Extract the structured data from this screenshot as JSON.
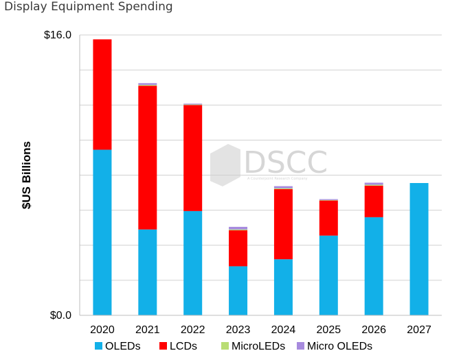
{
  "page": {
    "title": "Display Equipment Spending"
  },
  "watermark": {
    "text": "DSCC",
    "subtext": "A Counterpoint Research Company"
  },
  "chart_data": {
    "type": "bar",
    "stacked": true,
    "title": "",
    "xlabel": "",
    "ylabel": "$US Billions",
    "ylim": [
      0,
      16
    ],
    "y_tick_labels": [
      "$0.0",
      "$16.0"
    ],
    "gridlines": 8,
    "grid": true,
    "legend_position": "bottom",
    "categories": [
      "2020",
      "2021",
      "2022",
      "2023",
      "2024",
      "2025",
      "2026",
      "2027"
    ],
    "series": [
      {
        "name": "OLEDs",
        "color": "#12b0e8",
        "values": [
          9.45,
          4.9,
          5.95,
          2.8,
          3.2,
          4.55,
          5.6,
          7.55
        ]
      },
      {
        "name": "LCDs",
        "color": "#ff0000",
        "values": [
          6.3,
          8.2,
          6.05,
          2.05,
          4.0,
          2.0,
          1.8,
          0.0
        ]
      },
      {
        "name": "MicroLEDs",
        "color": "#b9dd74",
        "values": [
          0.0,
          0.05,
          0.03,
          0.05,
          0.05,
          0.03,
          0.05,
          0.0
        ]
      },
      {
        "name": "Micro OLEDs",
        "color": "#a78bde",
        "values": [
          0.0,
          0.1,
          0.05,
          0.15,
          0.12,
          0.05,
          0.12,
          0.0
        ]
      }
    ]
  }
}
